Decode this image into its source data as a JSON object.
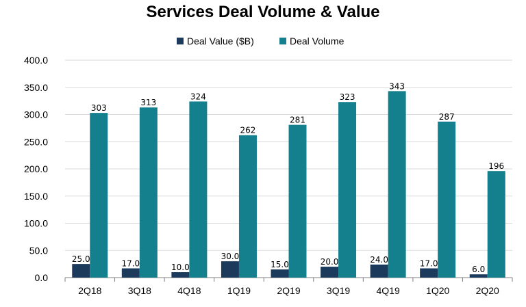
{
  "chart_data": {
    "type": "bar",
    "title": "Services Deal Volume & Value",
    "categories": [
      "2Q18",
      "3Q18",
      "4Q18",
      "1Q19",
      "2Q19",
      "3Q19",
      "4Q19",
      "1Q20",
      "2Q20"
    ],
    "series": [
      {
        "name": "Deal Value ($B)",
        "color": "#1b3a5c",
        "values": [
          25.0,
          17.0,
          10.0,
          30.0,
          15.0,
          20.0,
          24.0,
          17.0,
          6.0
        ],
        "labels": [
          "25.0",
          "17.0",
          "10.0",
          "30.0",
          "15.0",
          "20.0",
          "24.0",
          "17.0",
          "6.0"
        ]
      },
      {
        "name": "Deal Volume",
        "color": "#14808e",
        "values": [
          303,
          313,
          324,
          262,
          281,
          323,
          343,
          287,
          196
        ],
        "labels": [
          "303",
          "313",
          "324",
          "262",
          "281",
          "323",
          "343",
          "287",
          "196"
        ]
      }
    ],
    "yticks": [
      "0.0",
      "50.0",
      "100.0",
      "150.0",
      "200.0",
      "250.0",
      "300.0",
      "350.0",
      "400.0"
    ],
    "ylim": [
      0,
      400
    ],
    "xlabel": "",
    "ylabel": "",
    "grid": true,
    "legend": "top"
  }
}
